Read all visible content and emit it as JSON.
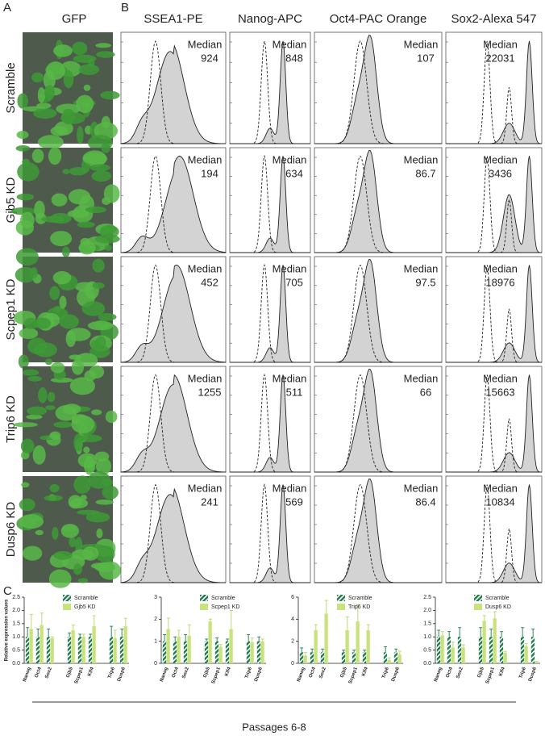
{
  "panel_labels": [
    "A",
    "B",
    "C"
  ],
  "gfp_header": "GFP",
  "flow": {
    "columns": [
      "SSEA1-PE",
      "Nanog-APC",
      "Oct4-PAC Orange",
      "Sox2-Alexa 547"
    ],
    "rows": [
      "Scramble",
      "Gjb5 KD",
      "Scpep1 KD",
      "Trip6 KD",
      "Dusp6 KD"
    ],
    "median_label": "Median",
    "medians": [
      [
        924,
        848,
        107,
        22031
      ],
      [
        194,
        634,
        86.7,
        3436
      ],
      [
        452,
        705,
        97.5,
        18976
      ],
      [
        1255,
        511,
        66,
        15663
      ],
      [
        241,
        569,
        86.4,
        10834
      ]
    ]
  },
  "chart_data": [
    {
      "type": "bar",
      "ylabel": "Relative expression values",
      "categories": [
        "Nanog",
        "Oct4",
        "Sox2",
        null,
        "Gjb5",
        "Scpep1",
        "Klf4",
        null,
        "Trip6",
        "Dusp6"
      ],
      "ylim": [
        0,
        2.5
      ],
      "yticks": [
        {
          "value": 0,
          "label": "0.0"
        },
        {
          "value": 0.5,
          "label": "0.5"
        },
        {
          "value": 1,
          "label": "1.0"
        },
        {
          "value": 1.5,
          "label": "1.5"
        },
        {
          "value": 2,
          "label": "2.0"
        },
        {
          "value": 2.5,
          "label": "2.5"
        }
      ],
      "series": [
        {
          "name": "Scramble",
          "color": "#1f7a4c",
          "values": [
            1,
            1,
            1,
            null,
            1,
            1,
            1,
            null,
            1,
            1
          ],
          "errors": [
            0.35,
            0.3,
            0.3,
            null,
            0.15,
            0.1,
            0.1,
            null,
            0.4,
            0.3
          ]
        },
        {
          "name": "Gjb5 KD",
          "color": "#c8e27c",
          "values": [
            1.3,
            1.45,
            0.95,
            null,
            1.25,
            1,
            1.4,
            null,
            0.95,
            1.4
          ],
          "errors": [
            0.55,
            0.45,
            0.05,
            null,
            0.2,
            0.1,
            0.4,
            null,
            0.3,
            0.3
          ]
        }
      ]
    },
    {
      "type": "bar",
      "categories": [
        "Nanog",
        "Oct4",
        "Sox2",
        null,
        "Gjb5",
        "Scpep1",
        "Klf4",
        null,
        "Trip6",
        "Dusp6"
      ],
      "ylim": [
        0,
        3
      ],
      "yticks": [
        0,
        1,
        2,
        3
      ],
      "series": [
        {
          "name": "Scramble",
          "color": "#1f7a4c",
          "values": [
            1,
            1,
            1,
            null,
            1,
            1,
            1,
            null,
            1,
            1
          ],
          "errors": [
            0.3,
            0.2,
            0.3,
            null,
            0.1,
            0.15,
            0.1,
            null,
            0.3,
            0.2
          ]
        },
        {
          "name": "Scpep1 KD",
          "color": "#c8e27c",
          "values": [
            1.55,
            1.2,
            1.25,
            null,
            1.9,
            0.75,
            1.55,
            null,
            0.95,
            1
          ],
          " errors_placeholder": null,
          "errors": [
            0.5,
            0.3,
            0.5,
            null,
            0.1,
            0.1,
            0.85,
            null,
            0.2,
            0.1
          ]
        }
      ]
    },
    {
      "type": "bar",
      "categories": [
        "Nanog",
        "Oct4",
        "Sox2",
        null,
        "Gjb5",
        "Scpep1",
        "Klf4",
        null,
        "Trip6",
        "Dusp6"
      ],
      "ylim": [
        0,
        6
      ],
      "yticks": [
        0,
        2,
        4,
        6
      ],
      "series": [
        {
          "name": "Scramble",
          "color": "#1f7a4c",
          "values": [
            1,
            1,
            1,
            null,
            1,
            1,
            1,
            null,
            1,
            1
          ],
          "errors": [
            0.4,
            0.3,
            0.3,
            null,
            0.2,
            0.2,
            0.2,
            null,
            0.5,
            0.3
          ]
        },
        {
          "name": "Trip6 KD",
          "color": "#c8e27c",
          "values": [
            0.7,
            3,
            4.5,
            null,
            3,
            3.8,
            3,
            null,
            0.3,
            0.8
          ],
          "errors": [
            0.3,
            0.5,
            1.2,
            null,
            1.2,
            1.5,
            0.5,
            null,
            0.2,
            0.3
          ]
        }
      ]
    },
    {
      "type": "bar",
      "categories": [
        "Nanog",
        "Oct4",
        "Sox2",
        null,
        "Gjb5",
        "Scpep1",
        "Klf4",
        null,
        "Trip6",
        "Dusp6"
      ],
      "ylim": [
        0,
        2.5
      ],
      "yticks": [
        {
          "value": 0,
          "label": "0.0"
        },
        {
          "value": 0.5,
          "label": "0.5"
        },
        {
          "value": 1,
          "label": "1.0"
        },
        {
          "value": 1.5,
          "label": "1.5"
        },
        {
          "value": 2,
          "label": "2.0"
        },
        {
          "value": 2.5,
          "label": "2.5"
        }
      ],
      "series": [
        {
          "name": "Scramble",
          "color": "#1f7a4c",
          "values": [
            1,
            1,
            1,
            null,
            1,
            1,
            1,
            null,
            1,
            1
          ],
          "errors": [
            0.25,
            0.2,
            0.35,
            null,
            0.35,
            0.3,
            0.2,
            null,
            0.35,
            0.3
          ]
        },
        {
          "name": "Dusp6 KD",
          "color": "#c8e27c",
          "values": [
            1.05,
            0.6,
            0.6,
            null,
            1.6,
            1.7,
            0.4,
            null,
            0.65,
            0.05
          ],
          "errors": [
            0.15,
            0.2,
            0.1,
            null,
            0.2,
            0.25,
            0.05,
            null,
            0.1,
            0.02
          ]
        }
      ]
    }
  ],
  "footer": "Passages 6-8"
}
